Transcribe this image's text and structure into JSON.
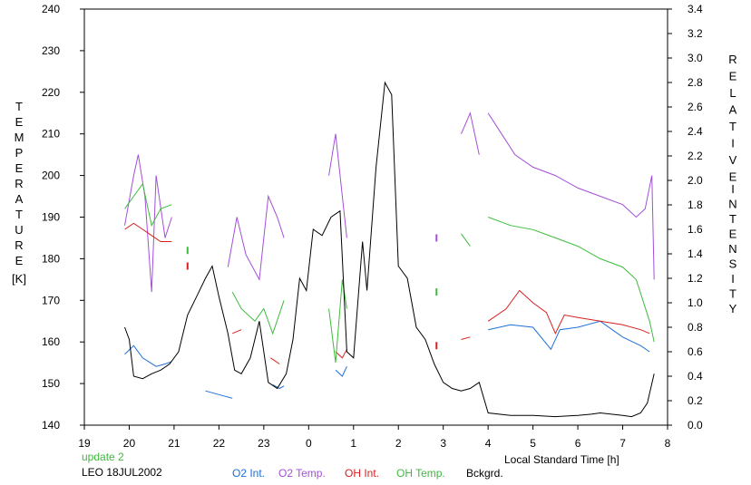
{
  "chart_data": {
    "type": "line",
    "xlabel": "Local Standard Time [h]",
    "x_ticks": [
      "19",
      "20",
      "21",
      "22",
      "23",
      "0",
      "1",
      "2",
      "3",
      "4",
      "5",
      "6",
      "7",
      "8"
    ],
    "x_range_hours": [
      19,
      32
    ],
    "left_axis": {
      "label_letters": [
        "T",
        "E",
        "M",
        "P",
        "E",
        "R",
        "A",
        "T",
        "U",
        "R",
        "E"
      ],
      "unit": "[K]",
      "ylim": [
        140,
        240
      ],
      "ticks": [
        "140",
        "150",
        "160",
        "170",
        "180",
        "190",
        "200",
        "210",
        "220",
        "230",
        "240"
      ]
    },
    "right_axis": {
      "label_col1": [
        "R",
        "E",
        "L",
        "A",
        "T",
        "I",
        "V",
        "E"
      ],
      "label_col2": [
        "I",
        "N",
        "T",
        "E",
        "N",
        "S",
        "I",
        "T",
        "Y"
      ],
      "ylim": [
        0,
        3.4
      ],
      "ticks": [
        "0.0",
        "0.2",
        "0.4",
        "0.6",
        "0.8",
        "1.0",
        "1.2",
        "1.4",
        "1.6",
        "1.8",
        "2.0",
        "2.2",
        "2.4",
        "2.6",
        "2.8",
        "3.0",
        "3.2",
        "3.4"
      ]
    },
    "series": [
      {
        "name": "O2 Int.",
        "axis": "right",
        "color": "#1e6fd9",
        "segments": [
          [
            [
              19.9,
              0.58
            ],
            [
              20.1,
              0.65
            ],
            [
              20.3,
              0.55
            ],
            [
              20.6,
              0.48
            ],
            [
              20.8,
              0.5
            ],
            [
              20.95,
              0.52
            ]
          ],
          [
            [
              21.7,
              0.28
            ],
            [
              22.0,
              0.25
            ],
            [
              22.3,
              0.22
            ]
          ],
          [
            [
              23.2,
              0.33
            ],
            [
              23.35,
              0.3
            ],
            [
              23.45,
              0.32
            ]
          ],
          [
            [
              24.6,
              0.45
            ],
            [
              24.75,
              0.4
            ],
            [
              24.85,
              0.48
            ]
          ],
          [
            [
              28.0,
              0.78
            ],
            [
              28.5,
              0.82
            ],
            [
              29.0,
              0.8
            ],
            [
              29.4,
              0.62
            ],
            [
              29.6,
              0.78
            ],
            [
              30.0,
              0.8
            ],
            [
              30.5,
              0.85
            ],
            [
              31.0,
              0.72
            ],
            [
              31.4,
              0.65
            ],
            [
              31.6,
              0.6
            ]
          ]
        ]
      },
      {
        "name": "O2 Temp.",
        "axis": "left",
        "color": "#a24fd9",
        "segments": [
          [
            [
              19.9,
              188
            ],
            [
              20.1,
              200
            ],
            [
              20.2,
              205
            ],
            [
              20.35,
              195
            ],
            [
              20.5,
              172
            ],
            [
              20.6,
              200
            ],
            [
              20.8,
              185
            ],
            [
              20.95,
              190
            ]
          ],
          [
            [
              22.2,
              178
            ],
            [
              22.4,
              190
            ],
            [
              22.6,
              181
            ],
            [
              22.9,
              175
            ],
            [
              23.1,
              195
            ],
            [
              23.3,
              190
            ],
            [
              23.45,
              185
            ]
          ],
          [
            [
              24.45,
              200
            ],
            [
              24.6,
              210
            ],
            [
              24.75,
              195
            ],
            [
              24.85,
              185
            ]
          ],
          [
            [
              26.85,
              185
            ]
          ],
          [
            [
              27.4,
              210
            ],
            [
              27.6,
              215
            ],
            [
              27.8,
              205
            ]
          ],
          [
            [
              28.0,
              215
            ],
            [
              28.3,
              210
            ],
            [
              28.6,
              205
            ],
            [
              29.0,
              202
            ],
            [
              29.5,
              200
            ],
            [
              30.0,
              197
            ],
            [
              30.5,
              195
            ],
            [
              31.0,
              193
            ],
            [
              31.3,
              190
            ],
            [
              31.5,
              192
            ],
            [
              31.65,
              200
            ],
            [
              31.7,
              175
            ]
          ]
        ]
      },
      {
        "name": "OH Int.",
        "axis": "right",
        "color": "#d62020",
        "segments": [
          [
            [
              19.9,
              1.6
            ],
            [
              20.1,
              1.65
            ],
            [
              20.3,
              1.6
            ],
            [
              20.5,
              1.55
            ],
            [
              20.7,
              1.5
            ],
            [
              20.95,
              1.5
            ]
          ],
          [
            [
              21.3,
              1.3
            ]
          ],
          [
            [
              22.3,
              0.75
            ],
            [
              22.5,
              0.78
            ]
          ],
          [
            [
              23.15,
              0.55
            ],
            [
              23.35,
              0.5
            ]
          ],
          [
            [
              24.6,
              0.6
            ],
            [
              24.75,
              0.55
            ],
            [
              24.85,
              0.62
            ]
          ],
          [
            [
              26.85,
              0.65
            ]
          ],
          [
            [
              27.4,
              0.7
            ],
            [
              27.6,
              0.72
            ]
          ],
          [
            [
              28.0,
              0.85
            ],
            [
              28.4,
              0.95
            ],
            [
              28.7,
              1.1
            ],
            [
              29.0,
              1.0
            ],
            [
              29.3,
              0.92
            ],
            [
              29.5,
              0.75
            ],
            [
              29.7,
              0.9
            ],
            [
              30.0,
              0.88
            ],
            [
              30.5,
              0.85
            ],
            [
              31.0,
              0.82
            ],
            [
              31.4,
              0.78
            ],
            [
              31.6,
              0.75
            ]
          ]
        ]
      },
      {
        "name": "OH Temp.",
        "axis": "left",
        "color": "#3dbb3d",
        "segments": [
          [
            [
              19.9,
              192
            ],
            [
              20.1,
              195
            ],
            [
              20.3,
              198
            ],
            [
              20.5,
              188
            ],
            [
              20.7,
              192
            ],
            [
              20.95,
              193
            ]
          ],
          [
            [
              21.3,
              182
            ]
          ],
          [
            [
              22.3,
              172
            ],
            [
              22.5,
              168
            ],
            [
              22.8,
              165
            ],
            [
              23.0,
              168
            ],
            [
              23.2,
              162
            ],
            [
              23.45,
              170
            ]
          ],
          [
            [
              24.45,
              168
            ],
            [
              24.6,
              155
            ],
            [
              24.75,
              175
            ],
            [
              24.85,
              168
            ]
          ],
          [
            [
              26.85,
              172
            ]
          ],
          [
            [
              27.4,
              186
            ],
            [
              27.6,
              183
            ]
          ],
          [
            [
              28.0,
              190
            ],
            [
              28.5,
              188
            ],
            [
              29.0,
              187
            ],
            [
              29.5,
              185
            ],
            [
              30.0,
              183
            ],
            [
              30.5,
              180
            ],
            [
              31.0,
              178
            ],
            [
              31.3,
              175
            ],
            [
              31.6,
              165
            ],
            [
              31.7,
              160
            ]
          ]
        ]
      },
      {
        "name": "Bckgrd.",
        "axis": "right",
        "color": "#000000",
        "segments": [
          [
            [
              19.9,
              0.8
            ],
            [
              20.0,
              0.7
            ],
            [
              20.1,
              0.4
            ],
            [
              20.3,
              0.38
            ],
            [
              20.5,
              0.42
            ],
            [
              20.7,
              0.45
            ],
            [
              20.9,
              0.5
            ],
            [
              21.1,
              0.6
            ],
            [
              21.3,
              0.9
            ],
            [
              21.5,
              1.05
            ],
            [
              21.7,
              1.2
            ],
            [
              21.85,
              1.3
            ],
            [
              22.0,
              1.05
            ],
            [
              22.2,
              0.75
            ],
            [
              22.35,
              0.45
            ],
            [
              22.5,
              0.42
            ],
            [
              22.7,
              0.55
            ],
            [
              22.9,
              0.85
            ],
            [
              23.1,
              0.35
            ],
            [
              23.3,
              0.3
            ],
            [
              23.5,
              0.42
            ],
            [
              23.65,
              0.7
            ],
            [
              23.8,
              1.2
            ],
            [
              23.95,
              1.1
            ],
            [
              24.1,
              1.6
            ],
            [
              24.3,
              1.55
            ],
            [
              24.5,
              1.7
            ],
            [
              24.7,
              1.75
            ],
            [
              24.85,
              0.6
            ],
            [
              25.0,
              0.55
            ],
            [
              25.2,
              1.5
            ],
            [
              25.3,
              1.1
            ],
            [
              25.5,
              2.1
            ],
            [
              25.7,
              2.8
            ],
            [
              25.85,
              2.7
            ],
            [
              26.0,
              1.3
            ],
            [
              26.2,
              1.2
            ],
            [
              26.4,
              0.8
            ],
            [
              26.6,
              0.7
            ],
            [
              26.8,
              0.5
            ],
            [
              27.0,
              0.35
            ],
            [
              27.2,
              0.3
            ],
            [
              27.4,
              0.28
            ],
            [
              27.6,
              0.3
            ],
            [
              27.8,
              0.35
            ],
            [
              28.0,
              0.1
            ],
            [
              28.5,
              0.08
            ],
            [
              29.0,
              0.08
            ],
            [
              29.5,
              0.07
            ],
            [
              30.0,
              0.08
            ],
            [
              30.3,
              0.09
            ],
            [
              30.5,
              0.1
            ],
            [
              31.0,
              0.08
            ],
            [
              31.2,
              0.07
            ],
            [
              31.4,
              0.1
            ],
            [
              31.55,
              0.18
            ],
            [
              31.7,
              0.42
            ]
          ]
        ]
      }
    ],
    "legend": {
      "placement": "bottom",
      "labels": [
        "O2 Int.",
        "O2 Temp.",
        "OH Int.",
        "OH Temp.",
        "Bckgrd."
      ]
    },
    "annotations": {
      "update_text": "update 2",
      "station_date": "LEO 18JUL2002"
    },
    "grid": false
  }
}
